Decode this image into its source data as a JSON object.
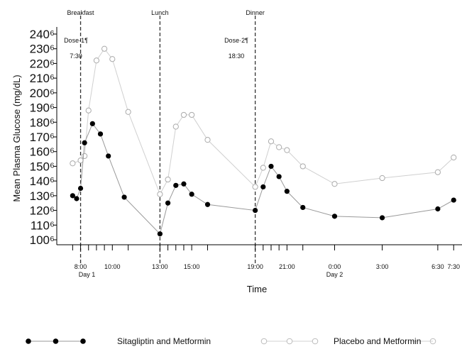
{
  "chart_data": {
    "type": "line",
    "ylabel": "Mean Plasma Glucose (mg/dL)",
    "xlabel": "Time",
    "ylim": [
      100,
      240
    ],
    "yticks": [
      {
        "v": 100,
        "label": "100⁶"
      },
      {
        "v": 110,
        "label": "110⁶"
      },
      {
        "v": 120,
        "label": "120⁶"
      },
      {
        "v": 130,
        "label": "130⁶"
      },
      {
        "v": 140,
        "label": "140⁶"
      },
      {
        "v": 150,
        "label": "150⁶"
      },
      {
        "v": 160,
        "label": "160⁶"
      },
      {
        "v": 170,
        "label": "170⁶"
      },
      {
        "v": 180,
        "label": "180⁶"
      },
      {
        "v": 190,
        "label": "190⁶"
      },
      {
        "v": 200,
        "label": "200⁶"
      },
      {
        "v": 210,
        "label": "210⁶"
      },
      {
        "v": 220,
        "label": "220⁶"
      },
      {
        "v": 230,
        "label": "230⁶"
      },
      {
        "v": 240,
        "label": "240⁶"
      }
    ],
    "xlim_hours": [
      6.5,
      32.0
    ],
    "tick_hours": [
      7.5,
      8.0,
      8.5,
      9.0,
      9.5,
      10.0,
      11.0,
      13.0,
      13.5,
      14.0,
      14.5,
      15.0,
      16.0,
      19.0,
      19.5,
      20.0,
      20.5,
      21.0,
      22.0,
      24.0,
      27.0,
      30.5,
      31.5
    ],
    "xtick_labels": [
      {
        "h": 8.0,
        "label": "8:00"
      },
      {
        "h": 10.0,
        "label": "10:00"
      },
      {
        "h": 13.0,
        "label": "13:00"
      },
      {
        "h": 15.0,
        "label": "15:00"
      },
      {
        "h": 19.0,
        "label": "19:00"
      },
      {
        "h": 21.0,
        "label": "21:00"
      },
      {
        "h": 24.0,
        "label": "0:00"
      },
      {
        "h": 27.0,
        "label": "3:00"
      },
      {
        "h": 30.5,
        "label": "6:30"
      },
      {
        "h": 31.5,
        "label": "7:30"
      }
    ],
    "day_labels": [
      {
        "h": 8.4,
        "label": "Day 1"
      },
      {
        "h": 24.0,
        "label": "Day 2"
      }
    ],
    "meals": [
      {
        "h": 8.0,
        "label": "Breakfast"
      },
      {
        "h": 13.0,
        "label": "Lunch"
      },
      {
        "h": 19.0,
        "label": "Dinner"
      }
    ],
    "doses": [
      {
        "h": 8.0,
        "name": "Dose·1¶",
        "time": "7:30"
      },
      {
        "h": 16.5,
        "name": "Dose·2¶",
        "time": "18:30"
      }
    ],
    "series": [
      {
        "name": "Sitagliptin and Metformin",
        "color": "#000000",
        "marker": "filled",
        "x": [
          7.5,
          7.75,
          8.0,
          8.25,
          8.75,
          9.25,
          9.75,
          10.75,
          13.0,
          13.5,
          14.0,
          14.5,
          15.0,
          16.0,
          19.0,
          19.5,
          20.0,
          20.5,
          21.0,
          22.0,
          24.0,
          27.0,
          30.5,
          31.5
        ],
        "y": [
          130,
          128,
          135,
          166,
          179,
          172,
          157,
          129,
          104,
          125,
          137,
          138,
          131,
          124,
          120,
          136,
          150,
          143,
          133,
          122,
          116,
          115,
          121,
          127
        ]
      },
      {
        "name": "Placebo and Metformin",
        "color": "#bbbbbb",
        "marker": "open",
        "x": [
          7.5,
          8.0,
          8.25,
          8.5,
          9.0,
          9.5,
          10.0,
          11.0,
          13.0,
          13.5,
          14.0,
          14.5,
          15.0,
          16.0,
          19.0,
          19.5,
          20.0,
          20.5,
          21.0,
          22.0,
          24.0,
          27.0,
          30.5,
          31.5
        ],
        "y": [
          152,
          154,
          157,
          188,
          222,
          230,
          223,
          187,
          131,
          141,
          177,
          185,
          185,
          168,
          136,
          149,
          167,
          163,
          161,
          150,
          138,
          142,
          146,
          156
        ]
      }
    ],
    "legend_position": "bottom"
  }
}
